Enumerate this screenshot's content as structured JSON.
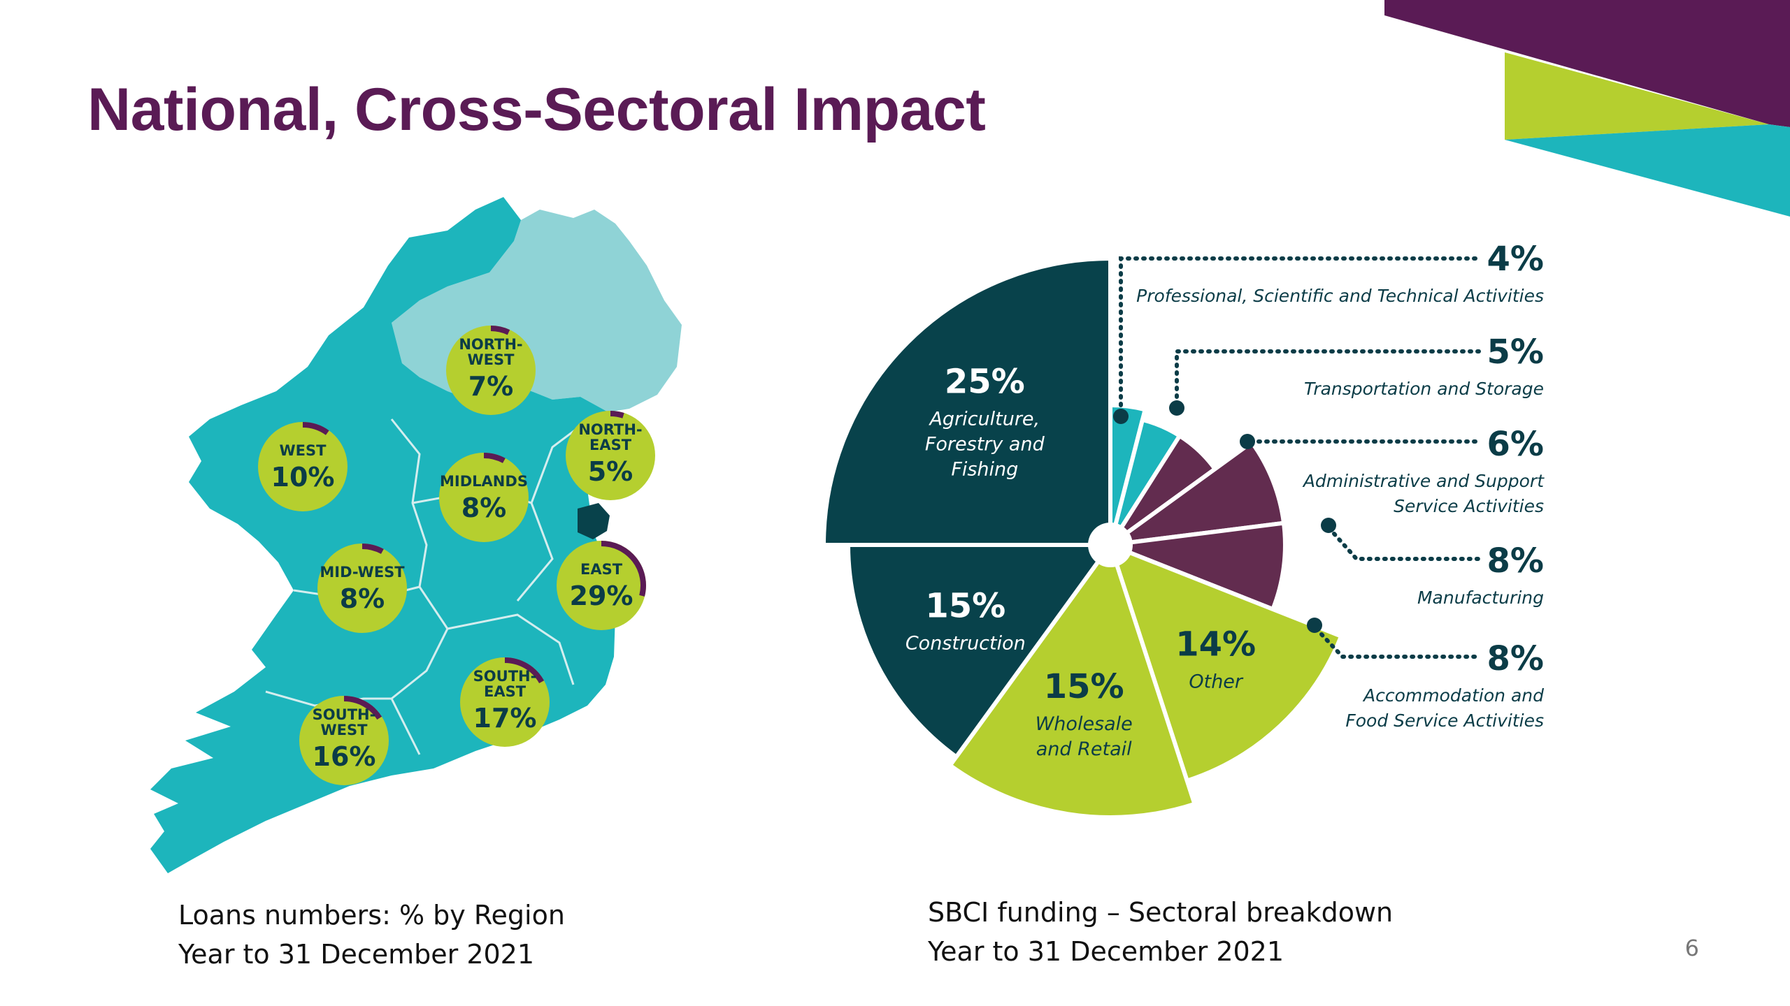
{
  "slide": {
    "title": "National, Cross-Sectoral Impact",
    "slide_number": "6",
    "colors": {
      "purple": "#5a1b55",
      "lime": "#b5cf2f",
      "teal": "#1db5bc",
      "dark_teal": "#08424b",
      "plum": "#622c4f",
      "light_teal": "#8fd3d6"
    }
  },
  "map_caption": {
    "line1": "Loans numbers: % by Region",
    "line2": "Year to 31 December 2021"
  },
  "pie_caption": {
    "line1": "SBCI funding – Sectoral breakdown",
    "line2": "Year to 31 December 2021"
  },
  "chart_data": [
    {
      "type": "map",
      "regions": [
        {
          "name_lines": [
            "NORTH-",
            "WEST"
          ],
          "label": "7%",
          "value": 7
        },
        {
          "name_lines": [
            "WEST"
          ],
          "label": "10%",
          "value": 10
        },
        {
          "name_lines": [
            "NORTH-",
            "EAST"
          ],
          "label": "5%",
          "value": 5
        },
        {
          "name_lines": [
            "MIDLANDS"
          ],
          "label": "8%",
          "value": 8
        },
        {
          "name_lines": [
            "MID-WEST"
          ],
          "label": "8%",
          "value": 8
        },
        {
          "name_lines": [
            "EAST"
          ],
          "label": "29%",
          "value": 29
        },
        {
          "name_lines": [
            "SOUTH-",
            "EAST"
          ],
          "label": "17%",
          "value": 17
        },
        {
          "name_lines": [
            "SOUTH-",
            "WEST"
          ],
          "label": "16%",
          "value": 16
        }
      ]
    },
    {
      "type": "pie",
      "slices": [
        {
          "label_lines": [],
          "value": 4,
          "pct": "",
          "color": "#1db5bc"
        },
        {
          "label_lines": [],
          "value": 5,
          "pct": "",
          "color": "#1db5bc"
        },
        {
          "label_lines": [],
          "value": 6,
          "pct": "",
          "color": "#622c4f"
        },
        {
          "label_lines": [],
          "value": 8,
          "pct": "",
          "color": "#622c4f"
        },
        {
          "label_lines": [],
          "value": 8,
          "pct": "",
          "color": "#622c4f"
        },
        {
          "label_lines": [
            "Other"
          ],
          "value": 14,
          "pct": "14%",
          "color": "#b5cf2f"
        },
        {
          "label_lines": [
            "Wholesale",
            "and Retail"
          ],
          "value": 15,
          "pct": "15%",
          "color": "#b5cf2f"
        },
        {
          "label_lines": [
            "Construction"
          ],
          "value": 15,
          "pct": "15%",
          "color": "#08424b"
        },
        {
          "label_lines": [
            "Agriculture,",
            "Forestry and",
            "Fishing"
          ],
          "value": 25,
          "pct": "25%",
          "color": "#08424b"
        }
      ],
      "callouts": [
        {
          "pct": "4%",
          "label_lines": [
            "Professional, Scientific and Technical Activities"
          ]
        },
        {
          "pct": "5%",
          "label_lines": [
            "Transportation and Storage"
          ]
        },
        {
          "pct": "6%",
          "label_lines": [
            "Administrative and Support",
            "Service Activities"
          ]
        },
        {
          "pct": "8%",
          "label_lines": [
            "Manufacturing"
          ]
        },
        {
          "pct": "8%",
          "label_lines": [
            "Accommodation and",
            "Food Service Activities"
          ]
        }
      ]
    }
  ]
}
